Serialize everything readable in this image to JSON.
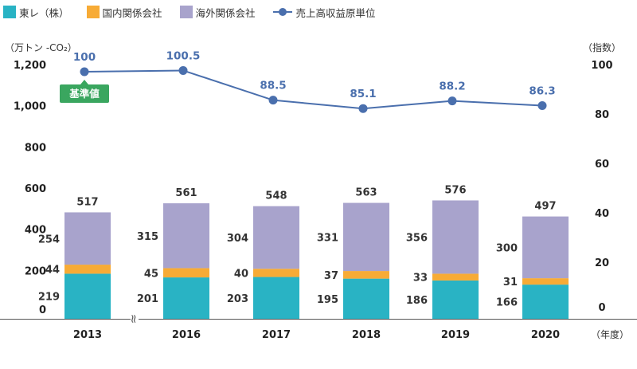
{
  "legend": [
    {
      "label": "東レ（株）",
      "kind": "bar",
      "color": "#29b3c4"
    },
    {
      "label": "国内関係会社",
      "kind": "bar",
      "color": "#f7ab36"
    },
    {
      "label": "海外関係会社",
      "kind": "bar",
      "color": "#a8a3cc"
    },
    {
      "label": "売上高収益原単位",
      "kind": "line",
      "color": "#4a6fad"
    }
  ],
  "chart_data": {
    "type": "bar",
    "categories": [
      "2013",
      "2016",
      "2017",
      "2018",
      "2019",
      "2020"
    ],
    "series": [
      {
        "name": "東レ（株）",
        "values": [
          219,
          201,
          203,
          195,
          186,
          166
        ],
        "color": "#29b3c4"
      },
      {
        "name": "国内関係会社",
        "values": [
          44,
          45,
          40,
          37,
          33,
          31
        ],
        "color": "#f7ab36"
      },
      {
        "name": "海外関係会社",
        "values": [
          254,
          315,
          304,
          331,
          356,
          300
        ],
        "color": "#a8a3cc"
      }
    ],
    "totals": [
      517,
      561,
      548,
      563,
      576,
      497
    ],
    "line_series": {
      "name": "売上高収益原単位",
      "values": [
        100,
        100.5,
        88.5,
        85.1,
        88.2,
        86.3
      ],
      "color": "#4a6fad",
      "axis": "right"
    },
    "ylabel": "（万トン -CO₂）",
    "ylabel_right": "（指数）",
    "xlabel": "（年度）",
    "ylim": [
      0,
      1200
    ],
    "yticks": [
      "0",
      "200",
      "400",
      "600",
      "800",
      "1,000",
      "1,200"
    ],
    "yticks_values": [
      0,
      200,
      400,
      600,
      800,
      1000,
      1200
    ],
    "y2ticks": [
      "0",
      "20",
      "40",
      "60",
      "80",
      "100"
    ],
    "y2_range": [
      0,
      100
    ],
    "axis_break": "≈",
    "annotation": "基準値",
    "annotation_color": "#3aa65f",
    "axis_color": "#555555"
  }
}
